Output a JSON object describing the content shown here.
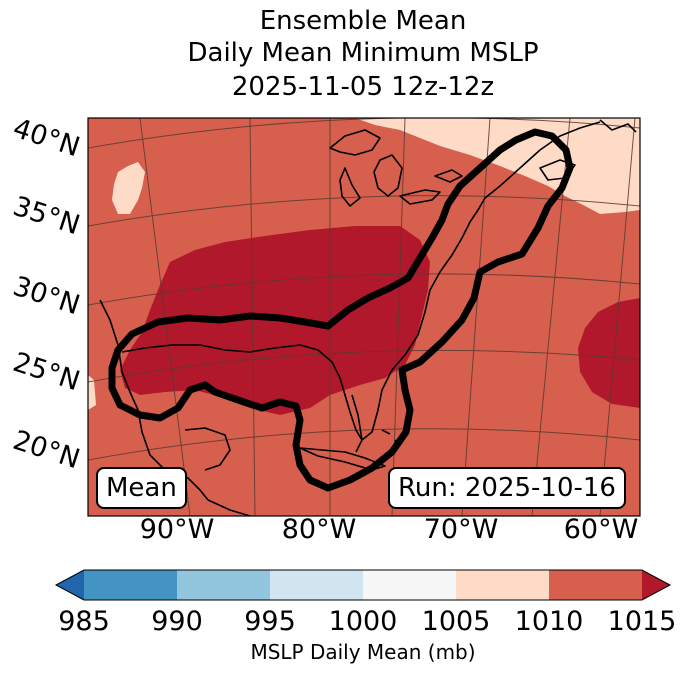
{
  "title": {
    "line1": "Ensemble Mean",
    "line2": "Daily Mean Minimum MSLP",
    "line3": "2025-11-05 12z-12z"
  },
  "map": {
    "region": "Eastern United States, Gulf of Mexico, western Atlantic",
    "lat_labels": [
      "40°N",
      "35°N",
      "30°N",
      "25°N",
      "20°N"
    ],
    "lon_labels": [
      "90°W",
      "80°W",
      "70°W",
      "60°W"
    ],
    "left_box": "Mean",
    "right_box": "Run: 2025-10-16",
    "colors": {
      "c1010_1015": "#d6604d",
      "c1015_plus": "#b2182b",
      "c1005_1010": "#fddbc7",
      "coastline": "#000000",
      "contour": "#000000",
      "gridline": "#5a3a30"
    }
  },
  "colorbar": {
    "label": "MSLP Daily Mean (mb)",
    "ticks": [
      "985",
      "990",
      "995",
      "1000",
      "1005",
      "1010",
      "1015"
    ],
    "bins": [
      {
        "range": "<985",
        "color": "#2166ac"
      },
      {
        "range": "985-990",
        "color": "#4393c3"
      },
      {
        "range": "990-995",
        "color": "#92c5de"
      },
      {
        "range": "995-1000",
        "color": "#d1e5f0"
      },
      {
        "range": "1000-1005",
        "color": "#f7f7f7"
      },
      {
        "range": "1005-1010",
        "color": "#fddbc7"
      },
      {
        "range": "1010-1015",
        "color": "#d6604d"
      },
      {
        "range": ">1015",
        "color": "#b2182b"
      }
    ]
  }
}
